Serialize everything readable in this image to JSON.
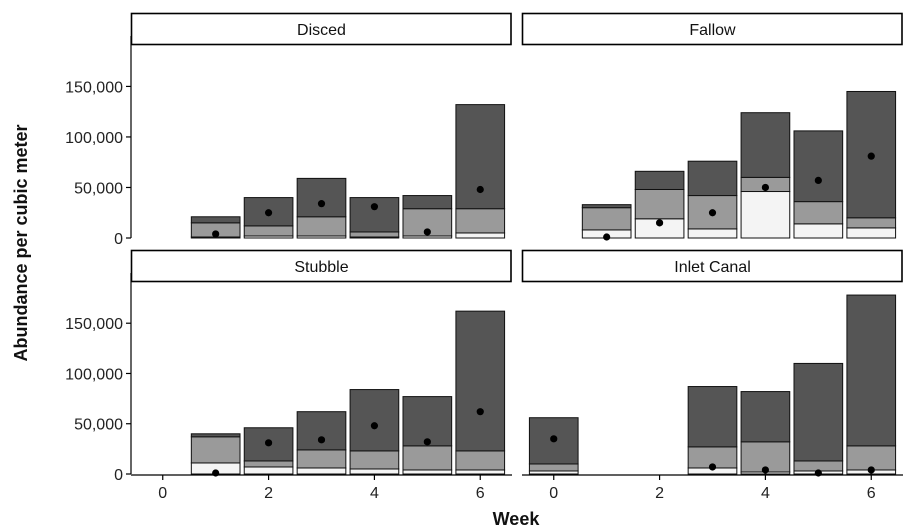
{
  "chart_data": {
    "type": "bar",
    "stacked": true,
    "xlabel": "Week",
    "ylabel": "Abundance per cubic meter",
    "ylim": [
      0,
      190000
    ],
    "xlim": [
      -0.6,
      6.6
    ],
    "yticks": [
      0,
      50000,
      100000,
      150000
    ],
    "ytick_labels": [
      "0",
      "50,000",
      "100,000",
      "150,000"
    ],
    "xticks": [
      0,
      2,
      4,
      6
    ],
    "xtick_labels": [
      "0",
      "2",
      "4",
      "6"
    ],
    "grid": false,
    "layer_colors": [
      "#f4f4f4",
      "#9a9a9a",
      "#555555"
    ],
    "segment_order_note": "segments listed bottom to top as cumulative tops",
    "panels": [
      {
        "title": "Disced",
        "bars": [
          {
            "week": 1,
            "tops": [
              1000,
              15000,
              21000
            ],
            "point": 4000
          },
          {
            "week": 2,
            "tops": [
              2000,
              12000,
              40000
            ],
            "point": 25000
          },
          {
            "week": 3,
            "tops": [
              2000,
              21000,
              59000
            ],
            "point": 34000
          },
          {
            "week": 4,
            "tops": [
              1000,
              6000,
              40000
            ],
            "point": 31000
          },
          {
            "week": 5,
            "tops": [
              2000,
              29000,
              42000
            ],
            "point": 6000
          },
          {
            "week": 6,
            "tops": [
              5000,
              29000,
              132000
            ],
            "point": 48000
          }
        ]
      },
      {
        "title": "Fallow",
        "bars": [
          {
            "week": 1,
            "tops": [
              8000,
              30000,
              33000
            ],
            "point": 1000
          },
          {
            "week": 2,
            "tops": [
              19000,
              48000,
              66000
            ],
            "point": 15000
          },
          {
            "week": 3,
            "tops": [
              9000,
              42000,
              76000
            ],
            "point": 25000
          },
          {
            "week": 4,
            "tops": [
              46000,
              60000,
              124000
            ],
            "point": 50000
          },
          {
            "week": 5,
            "tops": [
              14000,
              36000,
              106000
            ],
            "point": 57000
          },
          {
            "week": 6,
            "tops": [
              10000,
              20000,
              145000
            ],
            "point": 81000
          }
        ]
      },
      {
        "title": "Stubble",
        "bars": [
          {
            "week": 1,
            "tops": [
              11000,
              37000,
              40000
            ],
            "point": 1000
          },
          {
            "week": 2,
            "tops": [
              7000,
              13000,
              46000
            ],
            "point": 31000
          },
          {
            "week": 3,
            "tops": [
              6000,
              24000,
              62000
            ],
            "point": 34000
          },
          {
            "week": 4,
            "tops": [
              5000,
              23000,
              84000
            ],
            "point": 48000
          },
          {
            "week": 5,
            "tops": [
              4000,
              28000,
              77000
            ],
            "point": 32000
          },
          {
            "week": 6,
            "tops": [
              4000,
              23000,
              162000
            ],
            "point": 62000
          }
        ]
      },
      {
        "title": "Inlet Canal",
        "bars": [
          {
            "week": 0,
            "tops": [
              3000,
              10000,
              56000
            ],
            "point": 35000
          },
          {
            "week": 3,
            "tops": [
              6000,
              27000,
              87000
            ],
            "point": 7000
          },
          {
            "week": 4,
            "tops": [
              2000,
              32000,
              82000
            ],
            "point": 4000
          },
          {
            "week": 5,
            "tops": [
              3000,
              13000,
              110000
            ],
            "point": 1000
          },
          {
            "week": 6,
            "tops": [
              4000,
              28000,
              178000
            ],
            "point": 4000
          }
        ]
      }
    ]
  }
}
